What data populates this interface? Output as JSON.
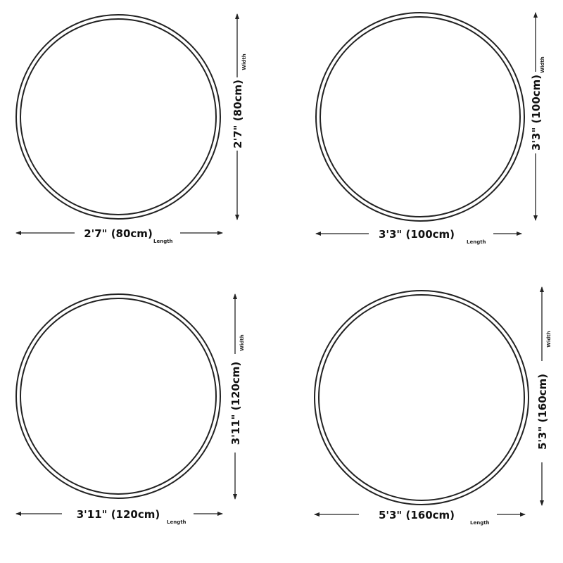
{
  "colors": {
    "line": "#222222",
    "background": "#ffffff"
  },
  "rugs": [
    {
      "width_label": "2'7\" (80cm)",
      "width_caption": "Width",
      "length_label": "2'7\" (80cm)",
      "length_caption": "Length"
    },
    {
      "width_label": "3'3\" (100cm)",
      "width_caption": "Width",
      "length_label": "3'3\" (100cm)",
      "length_caption": "Length"
    },
    {
      "width_label": "3'11\" (120cm)",
      "width_caption": "Width",
      "length_label": "3'11\" (120cm)",
      "length_caption": "Length"
    },
    {
      "width_label": "5'3\" (160cm)",
      "width_caption": "Width",
      "length_label": "5'3\" (160cm)",
      "length_caption": "Length"
    }
  ]
}
